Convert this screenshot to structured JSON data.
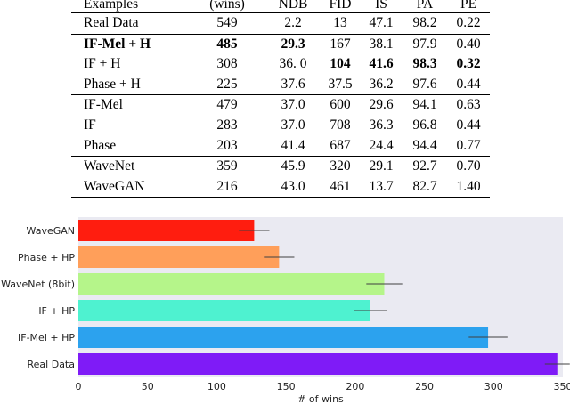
{
  "table": {
    "columns": [
      "Examples",
      "(wins)",
      "NDB",
      "FID",
      "IS",
      "PA",
      "PE"
    ],
    "groups": [
      [
        {
          "cells": [
            "Real Data",
            "549",
            "2.2",
            "13",
            "47.1",
            "98.2",
            "0.22"
          ],
          "bold": []
        }
      ],
      [
        {
          "cells": [
            "IF-Mel + H",
            "485",
            "29.3",
            "167",
            "38.1",
            "97.9",
            "0.40"
          ],
          "bold": [
            0,
            1,
            2
          ]
        },
        {
          "cells": [
            "IF + H",
            "308",
            "36. 0",
            "104",
            "41.6",
            "98.3",
            "0.32"
          ],
          "bold": [
            3,
            4,
            5,
            6
          ]
        },
        {
          "cells": [
            "Phase + H",
            "225",
            "37.6",
            "37.5",
            "36.2",
            "97.6",
            "0.44"
          ],
          "bold": []
        }
      ],
      [
        {
          "cells": [
            "IF-Mel",
            "479",
            "37.0",
            "600",
            "29.6",
            "94.1",
            "0.63"
          ],
          "bold": []
        },
        {
          "cells": [
            "IF",
            "283",
            "37.0",
            "708",
            "36.3",
            "96.8",
            "0.44"
          ],
          "bold": []
        },
        {
          "cells": [
            "Phase",
            "203",
            "41.4",
            "687",
            "24.4",
            "94.4",
            "0.77"
          ],
          "bold": []
        }
      ],
      [
        {
          "cells": [
            "WaveNet",
            "359",
            "45.9",
            "320",
            "29.1",
            "92.7",
            "0.70"
          ],
          "bold": []
        },
        {
          "cells": [
            "WaveGAN",
            "216",
            "43.0",
            "461",
            "13.7",
            "82.7",
            "1.40"
          ],
          "bold": []
        }
      ]
    ]
  },
  "chart_data": {
    "type": "bar",
    "orientation": "horizontal",
    "categories": [
      "WaveGAN",
      "Phase + HP",
      "WaveNet (8bit)",
      "IF + HP",
      "IF-Mel + HP",
      "Real Data"
    ],
    "values": [
      127,
      145,
      221,
      211,
      296,
      346
    ],
    "errors": [
      11,
      11,
      13,
      12,
      14,
      9
    ],
    "colors": [
      "#ff1d0f",
      "#ff9f5a",
      "#b5f58a",
      "#4ef2d0",
      "#2ca2ee",
      "#7f1bf7"
    ],
    "xlabel": "# of wins",
    "ylabel": "",
    "title": "",
    "xlim": [
      0,
      350
    ],
    "xticks": [
      0,
      50,
      100,
      150,
      200,
      250,
      300,
      350
    ],
    "grid": false,
    "background": "#eaeaf2",
    "error_bar_color": "#404040"
  }
}
